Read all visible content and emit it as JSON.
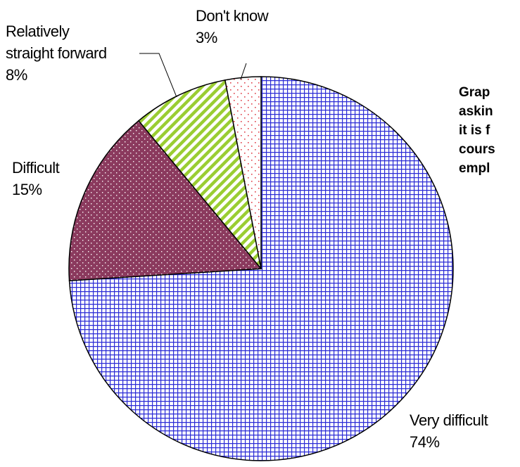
{
  "chart_data": {
    "type": "pie",
    "slices": [
      {
        "label": "Very difficult",
        "value": 74,
        "value_label": "74%",
        "color": "#2b2bd6",
        "pattern": "grid"
      },
      {
        "label": "Difficult",
        "value": 15,
        "value_label": "15%",
        "color": "#8b3a5e",
        "pattern": "dots"
      },
      {
        "label": "Relatively straight forward",
        "value": 8,
        "value_label": "8%",
        "color": "#9acd32",
        "pattern": "diagonal-stripes"
      },
      {
        "label": "Don't know",
        "value": 3,
        "value_label": "3%",
        "color": "#e0404a",
        "pattern": "sparse-dots"
      }
    ],
    "label_lines": [
      [
        "Very difficult",
        "74%"
      ],
      [
        "Difficult",
        "15%"
      ],
      [
        "Relatively",
        "straight forward",
        "8%"
      ],
      [
        "Don't know",
        "3%"
      ]
    ],
    "side_text": [
      "Grap",
      "askin",
      "it is f",
      "cours",
      "empl"
    ]
  }
}
